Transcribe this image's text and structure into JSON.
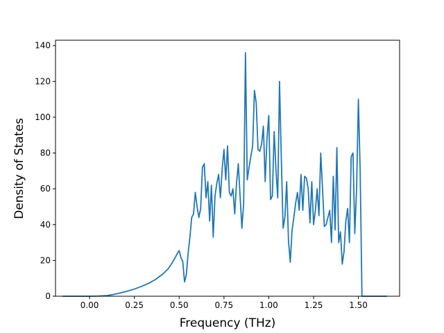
{
  "chart_data": {
    "type": "line",
    "xlabel": "Frequency (THz)",
    "ylabel": "Density of States",
    "xlim": [
      -0.19,
      1.73
    ],
    "ylim": [
      0,
      143
    ],
    "grid": false,
    "line_color": "#1f77b4",
    "xticks": [
      0.0,
      0.25,
      0.5,
      0.75,
      1.0,
      1.25,
      1.5
    ],
    "xtick_labels": [
      "0.00",
      "0.25",
      "0.50",
      "0.75",
      "1.00",
      "1.25",
      "1.50"
    ],
    "yticks": [
      0,
      20,
      40,
      60,
      80,
      100,
      120,
      140
    ],
    "ytick_labels": [
      "0",
      "20",
      "40",
      "60",
      "80",
      "100",
      "120",
      "140"
    ],
    "series": [
      {
        "x": [
          -0.15,
          0.0,
          0.05,
          0.1,
          0.13,
          0.17,
          0.21,
          0.25,
          0.29,
          0.33,
          0.37,
          0.41,
          0.44,
          0.46,
          0.48,
          0.49,
          0.5,
          0.51,
          0.52,
          0.53,
          0.54,
          0.55,
          0.56,
          0.57,
          0.58,
          0.59,
          0.6,
          0.61,
          0.62,
          0.63,
          0.64,
          0.65,
          0.66,
          0.67,
          0.68,
          0.69,
          0.7,
          0.71,
          0.72,
          0.73,
          0.74,
          0.75,
          0.76,
          0.77,
          0.78,
          0.79,
          0.8,
          0.81,
          0.82,
          0.83,
          0.84,
          0.85,
          0.86,
          0.87,
          0.88,
          0.89,
          0.9,
          0.91,
          0.92,
          0.93,
          0.94,
          0.95,
          0.96,
          0.97,
          0.98,
          0.99,
          1.0,
          1.01,
          1.02,
          1.03,
          1.04,
          1.05,
          1.06,
          1.07,
          1.08,
          1.09,
          1.1,
          1.11,
          1.12,
          1.13,
          1.14,
          1.15,
          1.16,
          1.17,
          1.18,
          1.19,
          1.2,
          1.21,
          1.22,
          1.23,
          1.24,
          1.25,
          1.26,
          1.27,
          1.28,
          1.29,
          1.3,
          1.31,
          1.32,
          1.33,
          1.34,
          1.35,
          1.36,
          1.37,
          1.38,
          1.39,
          1.4,
          1.41,
          1.42,
          1.43,
          1.44,
          1.45,
          1.46,
          1.47,
          1.48,
          1.49,
          1.5,
          1.51,
          1.52,
          1.66
        ],
        "y": [
          0,
          0,
          0.1,
          0.4,
          0.9,
          1.8,
          2.8,
          4.0,
          5.5,
          7.2,
          9.5,
          12.5,
          15.5,
          18.5,
          22.0,
          24.0,
          25.5,
          21.5,
          19.5,
          8.0,
          12.0,
          24.0,
          33.0,
          44.0,
          46.0,
          58.0,
          50.0,
          44.0,
          49.0,
          72.0,
          74.0,
          55.0,
          64.0,
          42.0,
          62.0,
          33.0,
          56.0,
          63.0,
          68.0,
          55.0,
          71.0,
          82.0,
          65.0,
          84.0,
          58.0,
          56.0,
          60.0,
          46.0,
          63.0,
          74.0,
          56.0,
          38.0,
          52.0,
          136.0,
          65.0,
          72.0,
          78.0,
          84.0,
          115.0,
          108.0,
          82.0,
          81.0,
          85.0,
          95.0,
          64.0,
          88.0,
          101.0,
          54.0,
          56.0,
          92.0,
          71.0,
          55.0,
          120.0,
          77.0,
          38.0,
          44.0,
          64.0,
          31.0,
          19.0,
          37.0,
          44.0,
          52.0,
          58.0,
          48.0,
          68.0,
          48.0,
          67.0,
          66.0,
          60.0,
          41.0,
          64.0,
          40.0,
          48.0,
          60.0,
          45.0,
          80.0,
          60.0,
          39.0,
          40.0,
          44.0,
          48.0,
          30.0,
          67.0,
          37.0,
          83.0,
          30.0,
          36.0,
          18.0,
          25.0,
          42.0,
          49.0,
          30.0,
          78.0,
          80.0,
          35.0,
          60.0,
          110.0,
          70.0,
          0.0,
          0.0
        ]
      }
    ]
  }
}
